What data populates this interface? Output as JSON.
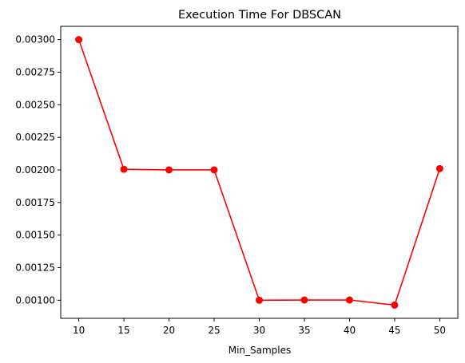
{
  "chart_data": {
    "type": "line",
    "title": "Execution Time For DBSCAN",
    "xlabel": "Min_Samples",
    "ylabel": "",
    "x": [
      10,
      15,
      20,
      25,
      30,
      35,
      40,
      45,
      50
    ],
    "series": [
      {
        "values": [
          0.003,
          0.002005,
          0.002,
          0.002,
          0.001,
          0.001002,
          0.001002,
          0.000963,
          0.00201
        ],
        "color": "#ff0000",
        "marker": "circle"
      }
    ],
    "xticks": [
      "10",
      "15",
      "20",
      "25",
      "30",
      "35",
      "40",
      "45",
      "50"
    ],
    "xtick_values": [
      10,
      15,
      20,
      25,
      30,
      35,
      40,
      45,
      50
    ],
    "yticks": [
      "0.00100",
      "0.00125",
      "0.00150",
      "0.00175",
      "0.00200",
      "0.00225",
      "0.00250",
      "0.00275",
      "0.00300"
    ],
    "ytick_values": [
      0.001,
      0.00125,
      0.0015,
      0.00175,
      0.002,
      0.00225,
      0.0025,
      0.00275,
      0.003
    ],
    "xlim": [
      8,
      52
    ],
    "ylim": [
      0.0008613,
      0.0031018
    ],
    "grid": false
  }
}
